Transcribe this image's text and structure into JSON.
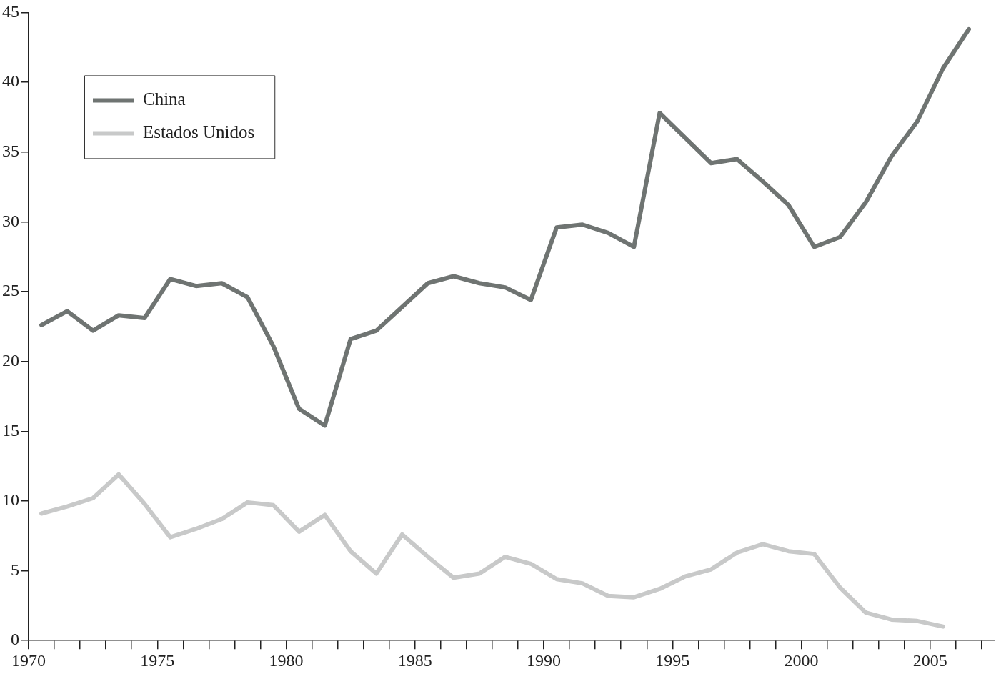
{
  "chart_data": {
    "type": "line",
    "legend": "top left",
    "line_style": "solid",
    "xlim": [
      1970,
      2007.5
    ],
    "ylim": [
      0,
      45
    ],
    "xticks": [
      1970,
      {
        "value": 1971,
        "label": null
      },
      {
        "value": 1972,
        "label": null
      },
      {
        "value": 1973,
        "label": null
      },
      {
        "value": 1974,
        "label": null
      },
      1975,
      {
        "value": 1976,
        "label": null
      },
      {
        "value": 1977,
        "label": null
      },
      {
        "value": 1978,
        "label": null
      },
      {
        "value": 1979,
        "label": null
      },
      1980,
      {
        "value": 1981,
        "label": null
      },
      {
        "value": 1982,
        "label": null
      },
      {
        "value": 1983,
        "label": null
      },
      {
        "value": 1984,
        "label": null
      },
      1985,
      {
        "value": 1986,
        "label": null
      },
      {
        "value": 1987,
        "label": null
      },
      {
        "value": 1988,
        "label": null
      },
      {
        "value": 1989,
        "label": null
      },
      1990,
      {
        "value": 1991,
        "label": null
      },
      {
        "value": 1992,
        "label": null
      },
      {
        "value": 1993,
        "label": null
      },
      {
        "value": 1994,
        "label": null
      },
      1995,
      {
        "value": 1996,
        "label": null
      },
      {
        "value": 1997,
        "label": null
      },
      {
        "value": 1998,
        "label": null
      },
      {
        "value": 1999,
        "label": null
      },
      2000,
      {
        "value": 2001,
        "label": null
      },
      {
        "value": 2002,
        "label": null
      },
      {
        "value": 2003,
        "label": null
      },
      {
        "value": 2004,
        "label": null
      },
      2005,
      {
        "value": 2006,
        "label": null
      },
      {
        "value": 2007,
        "label": null
      }
    ],
    "yticks": [
      0,
      5,
      10,
      15,
      20,
      25,
      30,
      35,
      40,
      45
    ],
    "series": [
      {
        "name": "China",
        "color": "#6f7472",
        "x": [
          1970.5,
          1971.5,
          1972.5,
          1973.5,
          1974.5,
          1975.5,
          1976.5,
          1977.5,
          1978.5,
          1979.5,
          1980.5,
          1981.5,
          1982.5,
          1983.5,
          1984.5,
          1985.5,
          1986.5,
          1987.5,
          1988.5,
          1989.5,
          1990.5,
          1991.5,
          1992.5,
          1993.5,
          1994.5,
          1995.5,
          1996.5,
          1997.5,
          1998.5,
          1999.5,
          2000.5,
          2001.5,
          2002.5,
          2003.5,
          2004.5,
          2005.5,
          2006.5
        ],
        "values": [
          22.6,
          23.6,
          22.2,
          23.3,
          23.1,
          25.9,
          25.4,
          25.6,
          24.6,
          21.1,
          16.6,
          15.4,
          21.6,
          22.2,
          23.9,
          25.6,
          26.1,
          25.6,
          25.3,
          24.4,
          29.6,
          29.8,
          29.2,
          28.2,
          37.8,
          36.0,
          34.2,
          34.5,
          32.9,
          31.2,
          28.2,
          28.9,
          31.4,
          34.7,
          37.2,
          41.0,
          43.8
        ]
      },
      {
        "name": "Estados Unidos",
        "color": "#c8c9c9",
        "x": [
          1970.5,
          1971.5,
          1972.5,
          1973.5,
          1974.5,
          1975.5,
          1976.5,
          1977.5,
          1978.5,
          1979.5,
          1980.5,
          1981.5,
          1982.5,
          1983.5,
          1984.5,
          1985.5,
          1986.5,
          1987.5,
          1988.5,
          1989.5,
          1990.5,
          1991.5,
          1992.5,
          1993.5,
          1994.5,
          1995.5,
          1996.5,
          1997.5,
          1998.5,
          1999.5,
          2000.5,
          2001.5,
          2002.5,
          2003.5,
          2004.5,
          2005.5
        ],
        "values": [
          9.1,
          9.6,
          10.2,
          11.9,
          9.8,
          7.4,
          8.0,
          8.7,
          9.9,
          9.7,
          7.8,
          9.0,
          6.4,
          4.8,
          7.6,
          6.0,
          4.5,
          4.8,
          6.0,
          5.5,
          4.4,
          4.1,
          3.2,
          3.1,
          3.7,
          4.6,
          5.1,
          6.3,
          6.9,
          6.4,
          6.2,
          3.8,
          2.0,
          1.5,
          1.4,
          1.0
        ]
      }
    ]
  }
}
